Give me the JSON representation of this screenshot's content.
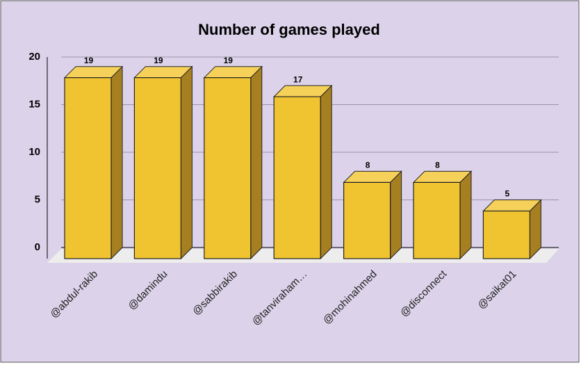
{
  "chart_data": {
    "type": "bar",
    "title": "Number of games played",
    "categories": [
      "@abdul-rakib",
      "@damindu",
      "@sabbirakib",
      "@tanviraham…",
      "@mohinahmed",
      "@disconnect",
      "@saikat01"
    ],
    "values": [
      19,
      19,
      19,
      17,
      8,
      8,
      5
    ],
    "color": "#f0c330",
    "ylim": [
      0,
      20
    ],
    "yticks": [
      0,
      5,
      10,
      15,
      20
    ],
    "grid": true
  }
}
